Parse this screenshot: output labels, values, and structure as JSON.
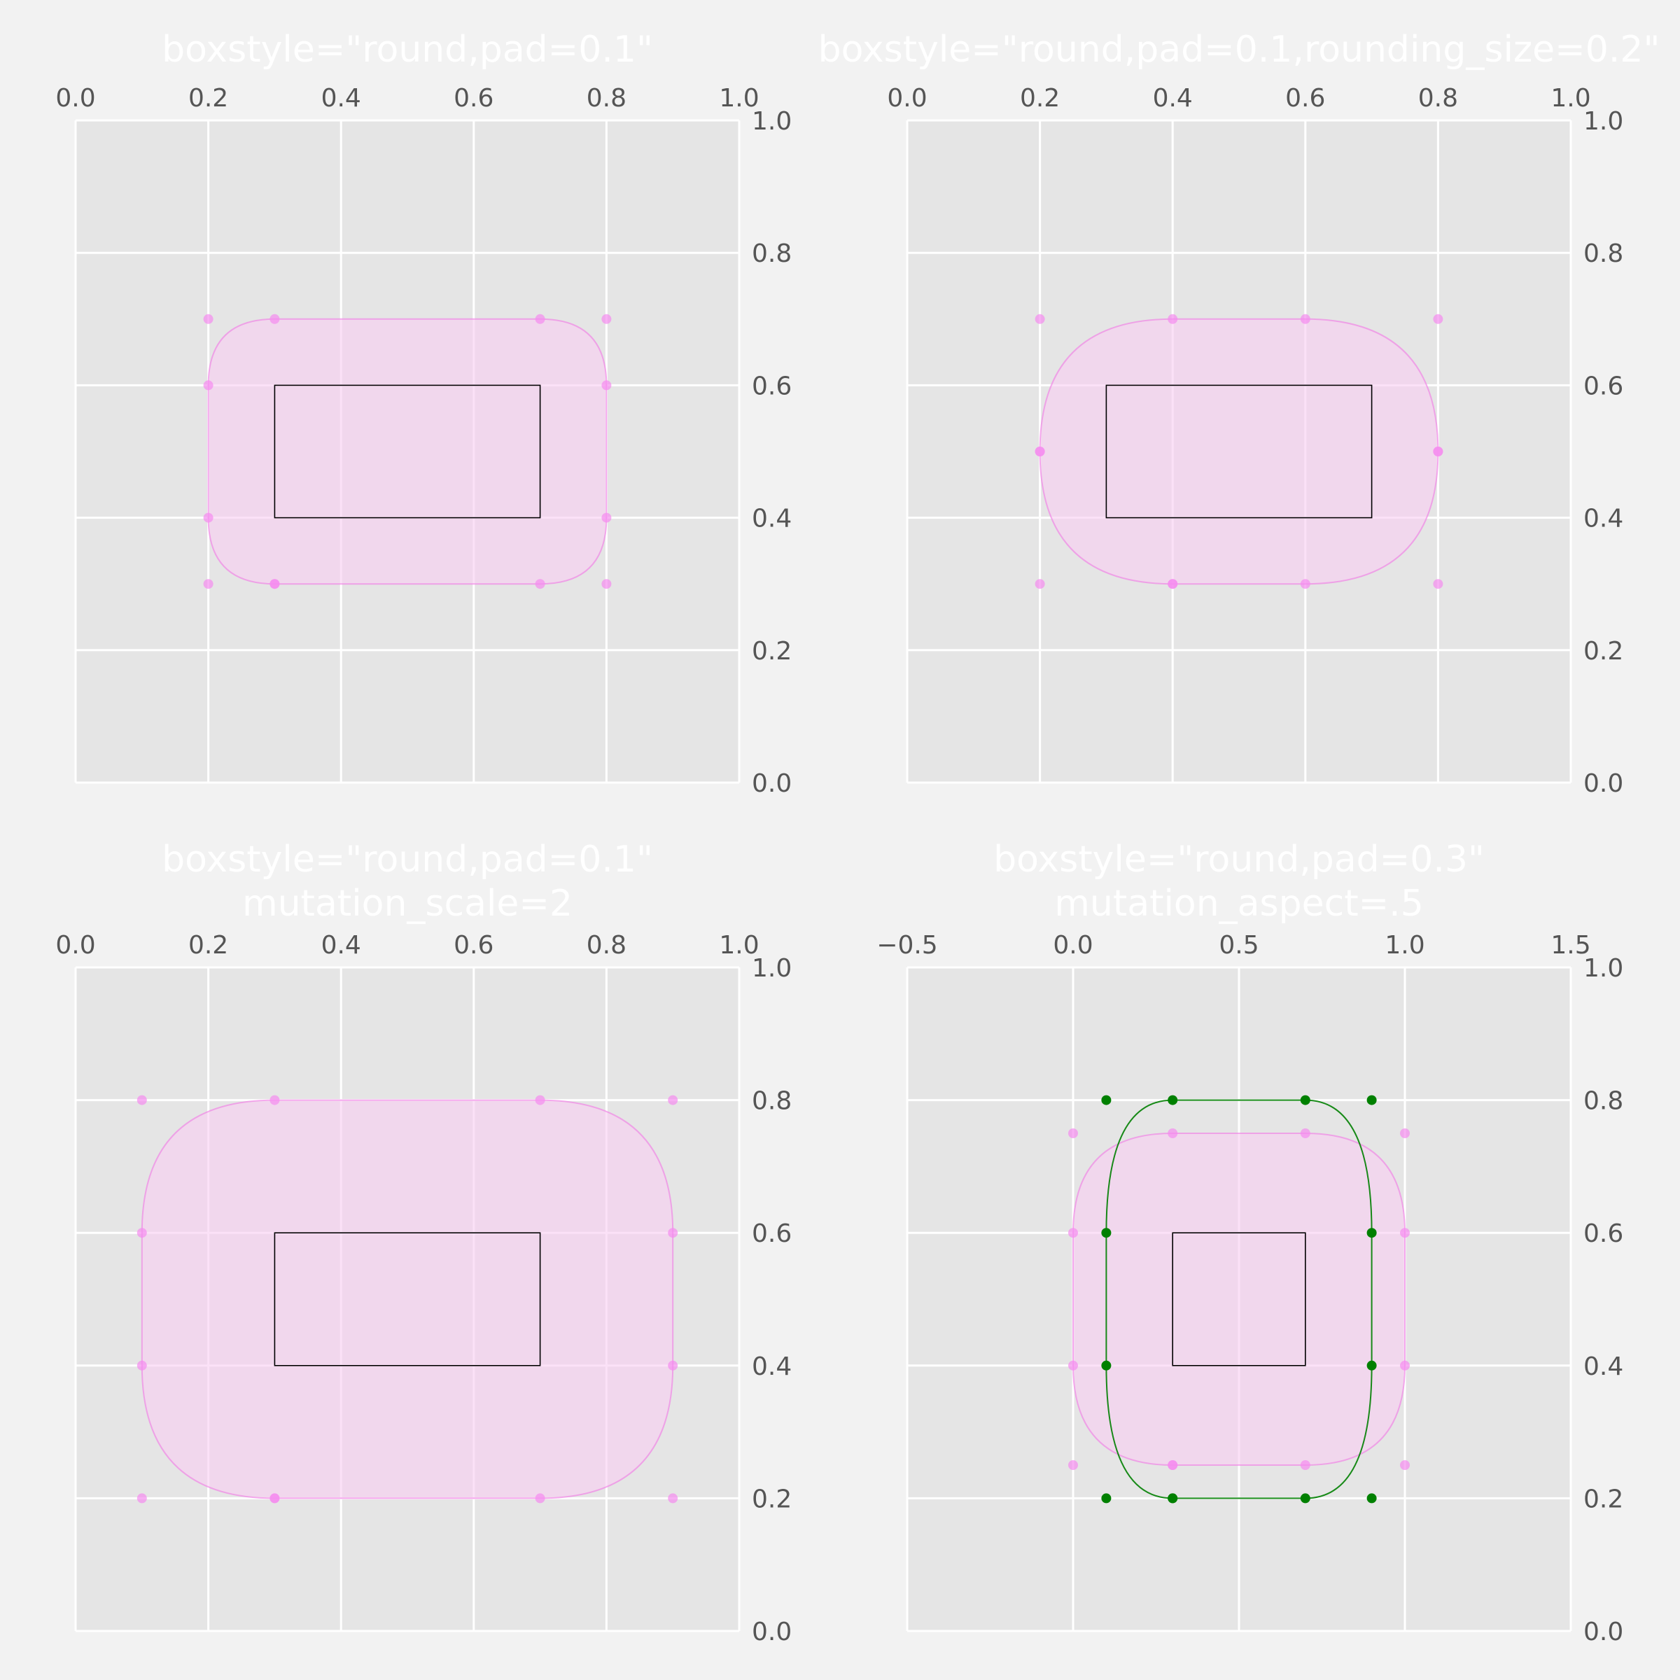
{
  "figure": {
    "background": "#f2f2f2",
    "axes_background": "#e5e5e5",
    "grid_color": "#ffffff"
  },
  "chart_data": [
    {
      "type": "scatter",
      "title": [
        "boxstyle=\"round,pad=0.1\""
      ],
      "xlim": [
        0,
        1
      ],
      "ylim": [
        0,
        1
      ],
      "xticks": [
        0.0,
        0.2,
        0.4,
        0.6,
        0.8,
        1.0
      ],
      "xtick_labels": [
        "0.0",
        "0.2",
        "0.4",
        "0.6",
        "0.8",
        "1.0"
      ],
      "yticks": [
        0.0,
        0.2,
        0.4,
        0.6,
        0.8,
        1.0
      ],
      "ytick_labels": [
        "0.0",
        "0.2",
        "0.4",
        "0.6",
        "0.8",
        "1.0"
      ],
      "xaxis_position": "top",
      "yaxis_position": "right",
      "grid": true,
      "inner_box": {
        "x0": 0.3,
        "y0": 0.4,
        "x1": 0.7,
        "y1": 0.6
      },
      "round_boxes": [
        {
          "x0": 0.2,
          "y0": 0.3,
          "x1": 0.8,
          "y1": 0.7,
          "rx": 0.1,
          "ry": 0.1,
          "fill": "#f8cdf2",
          "edge": "#f07ae4",
          "points_color": "#f58cf0",
          "points": [
            [
              0.3,
              0.3
            ],
            [
              0.7,
              0.3
            ],
            [
              0.8,
              0.3
            ],
            [
              0.8,
              0.4
            ],
            [
              0.8,
              0.6
            ],
            [
              0.8,
              0.7
            ],
            [
              0.7,
              0.7
            ],
            [
              0.3,
              0.7
            ],
            [
              0.2,
              0.7
            ],
            [
              0.2,
              0.6
            ],
            [
              0.2,
              0.4
            ],
            [
              0.2,
              0.3
            ],
            [
              0.3,
              0.3
            ]
          ]
        }
      ]
    },
    {
      "type": "scatter",
      "title": [
        "boxstyle=\"round,pad=0.1,rounding_size=0.2\""
      ],
      "xlim": [
        0,
        1
      ],
      "ylim": [
        0,
        1
      ],
      "xticks": [
        0.0,
        0.2,
        0.4,
        0.6,
        0.8,
        1.0
      ],
      "xtick_labels": [
        "0.0",
        "0.2",
        "0.4",
        "0.6",
        "0.8",
        "1.0"
      ],
      "yticks": [
        0.0,
        0.2,
        0.4,
        0.6,
        0.8,
        1.0
      ],
      "ytick_labels": [
        "0.0",
        "0.2",
        "0.4",
        "0.6",
        "0.8",
        "1.0"
      ],
      "xaxis_position": "top",
      "yaxis_position": "right",
      "grid": true,
      "inner_box": {
        "x0": 0.3,
        "y0": 0.4,
        "x1": 0.7,
        "y1": 0.6
      },
      "round_boxes": [
        {
          "x0": 0.2,
          "y0": 0.3,
          "x1": 0.8,
          "y1": 0.7,
          "rx": 0.2,
          "ry": 0.2,
          "fill": "#f8cdf2",
          "edge": "#f07ae4",
          "points_color": "#f58cf0",
          "points": [
            [
              0.4,
              0.3
            ],
            [
              0.6,
              0.3
            ],
            [
              0.8,
              0.3
            ],
            [
              0.8,
              0.5
            ],
            [
              0.8,
              0.5
            ],
            [
              0.8,
              0.7
            ],
            [
              0.6,
              0.7
            ],
            [
              0.4,
              0.7
            ],
            [
              0.2,
              0.7
            ],
            [
              0.2,
              0.5
            ],
            [
              0.2,
              0.5
            ],
            [
              0.2,
              0.3
            ],
            [
              0.4,
              0.3
            ]
          ]
        }
      ]
    },
    {
      "type": "scatter",
      "title": [
        "boxstyle=\"round,pad=0.1\"",
        "mutation_scale=2"
      ],
      "xlim": [
        0,
        1
      ],
      "ylim": [
        0,
        1
      ],
      "xticks": [
        0.0,
        0.2,
        0.4,
        0.6,
        0.8,
        1.0
      ],
      "xtick_labels": [
        "0.0",
        "0.2",
        "0.4",
        "0.6",
        "0.8",
        "1.0"
      ],
      "yticks": [
        0.0,
        0.2,
        0.4,
        0.6,
        0.8,
        1.0
      ],
      "ytick_labels": [
        "0.0",
        "0.2",
        "0.4",
        "0.6",
        "0.8",
        "1.0"
      ],
      "xaxis_position": "top",
      "yaxis_position": "right",
      "grid": true,
      "inner_box": {
        "x0": 0.3,
        "y0": 0.4,
        "x1": 0.7,
        "y1": 0.6
      },
      "round_boxes": [
        {
          "x0": 0.1,
          "y0": 0.2,
          "x1": 0.9,
          "y1": 0.8,
          "rx": 0.2,
          "ry": 0.2,
          "fill": "#f8cdf2",
          "edge": "#f07ae4",
          "points_color": "#f58cf0",
          "points": [
            [
              0.3,
              0.2
            ],
            [
              0.7,
              0.2
            ],
            [
              0.9,
              0.2
            ],
            [
              0.9,
              0.4
            ],
            [
              0.9,
              0.6
            ],
            [
              0.9,
              0.8
            ],
            [
              0.7,
              0.8
            ],
            [
              0.3,
              0.8
            ],
            [
              0.1,
              0.8
            ],
            [
              0.1,
              0.6
            ],
            [
              0.1,
              0.4
            ],
            [
              0.1,
              0.2
            ],
            [
              0.3,
              0.2
            ]
          ]
        }
      ]
    },
    {
      "type": "scatter",
      "title": [
        "boxstyle=\"round,pad=0.3\"",
        "mutation_aspect=.5"
      ],
      "xlim": [
        -0.5,
        1.5
      ],
      "ylim": [
        0,
        1
      ],
      "xticks": [
        -0.5,
        0.0,
        0.5,
        1.0,
        1.5
      ],
      "xtick_labels": [
        "−0.5",
        "0.0",
        "0.5",
        "1.0",
        "1.5"
      ],
      "yticks": [
        0.0,
        0.2,
        0.4,
        0.6,
        0.8,
        1.0
      ],
      "ytick_labels": [
        "0.0",
        "0.2",
        "0.4",
        "0.6",
        "0.8",
        "1.0"
      ],
      "xaxis_position": "top",
      "yaxis_position": "right",
      "grid": true,
      "inner_box": {
        "x0": 0.3,
        "y0": 0.4,
        "x1": 0.7,
        "y1": 0.6
      },
      "round_boxes": [
        {
          "x0": 0.0,
          "y0": 0.25,
          "x1": 1.0,
          "y1": 0.75,
          "rx": 0.3,
          "ry": 0.15,
          "fill": "#f8cdf2",
          "edge": "#f07ae4",
          "points_color": "#f58cf0",
          "points": [
            [
              0.3,
              0.25
            ],
            [
              0.7,
              0.25
            ],
            [
              1.0,
              0.25
            ],
            [
              1.0,
              0.4
            ],
            [
              1.0,
              0.6
            ],
            [
              1.0,
              0.75
            ],
            [
              0.7,
              0.75
            ],
            [
              0.3,
              0.75
            ],
            [
              0.0,
              0.75
            ],
            [
              0.0,
              0.6
            ],
            [
              0.0,
              0.4
            ],
            [
              0.0,
              0.25
            ],
            [
              0.3,
              0.25
            ]
          ]
        },
        {
          "x0": 0.1,
          "y0": 0.2,
          "x1": 0.9,
          "y1": 0.8,
          "rx": 0.2,
          "ry": 0.2,
          "fill": "none",
          "edge": "#008000",
          "points_color": "#008000",
          "points": [
            [
              0.3,
              0.2
            ],
            [
              0.7,
              0.2
            ],
            [
              0.9,
              0.2
            ],
            [
              0.9,
              0.4
            ],
            [
              0.9,
              0.6
            ],
            [
              0.9,
              0.8
            ],
            [
              0.7,
              0.8
            ],
            [
              0.3,
              0.8
            ],
            [
              0.1,
              0.8
            ],
            [
              0.1,
              0.6
            ],
            [
              0.1,
              0.4
            ],
            [
              0.1,
              0.2
            ],
            [
              0.3,
              0.2
            ]
          ]
        }
      ]
    }
  ]
}
